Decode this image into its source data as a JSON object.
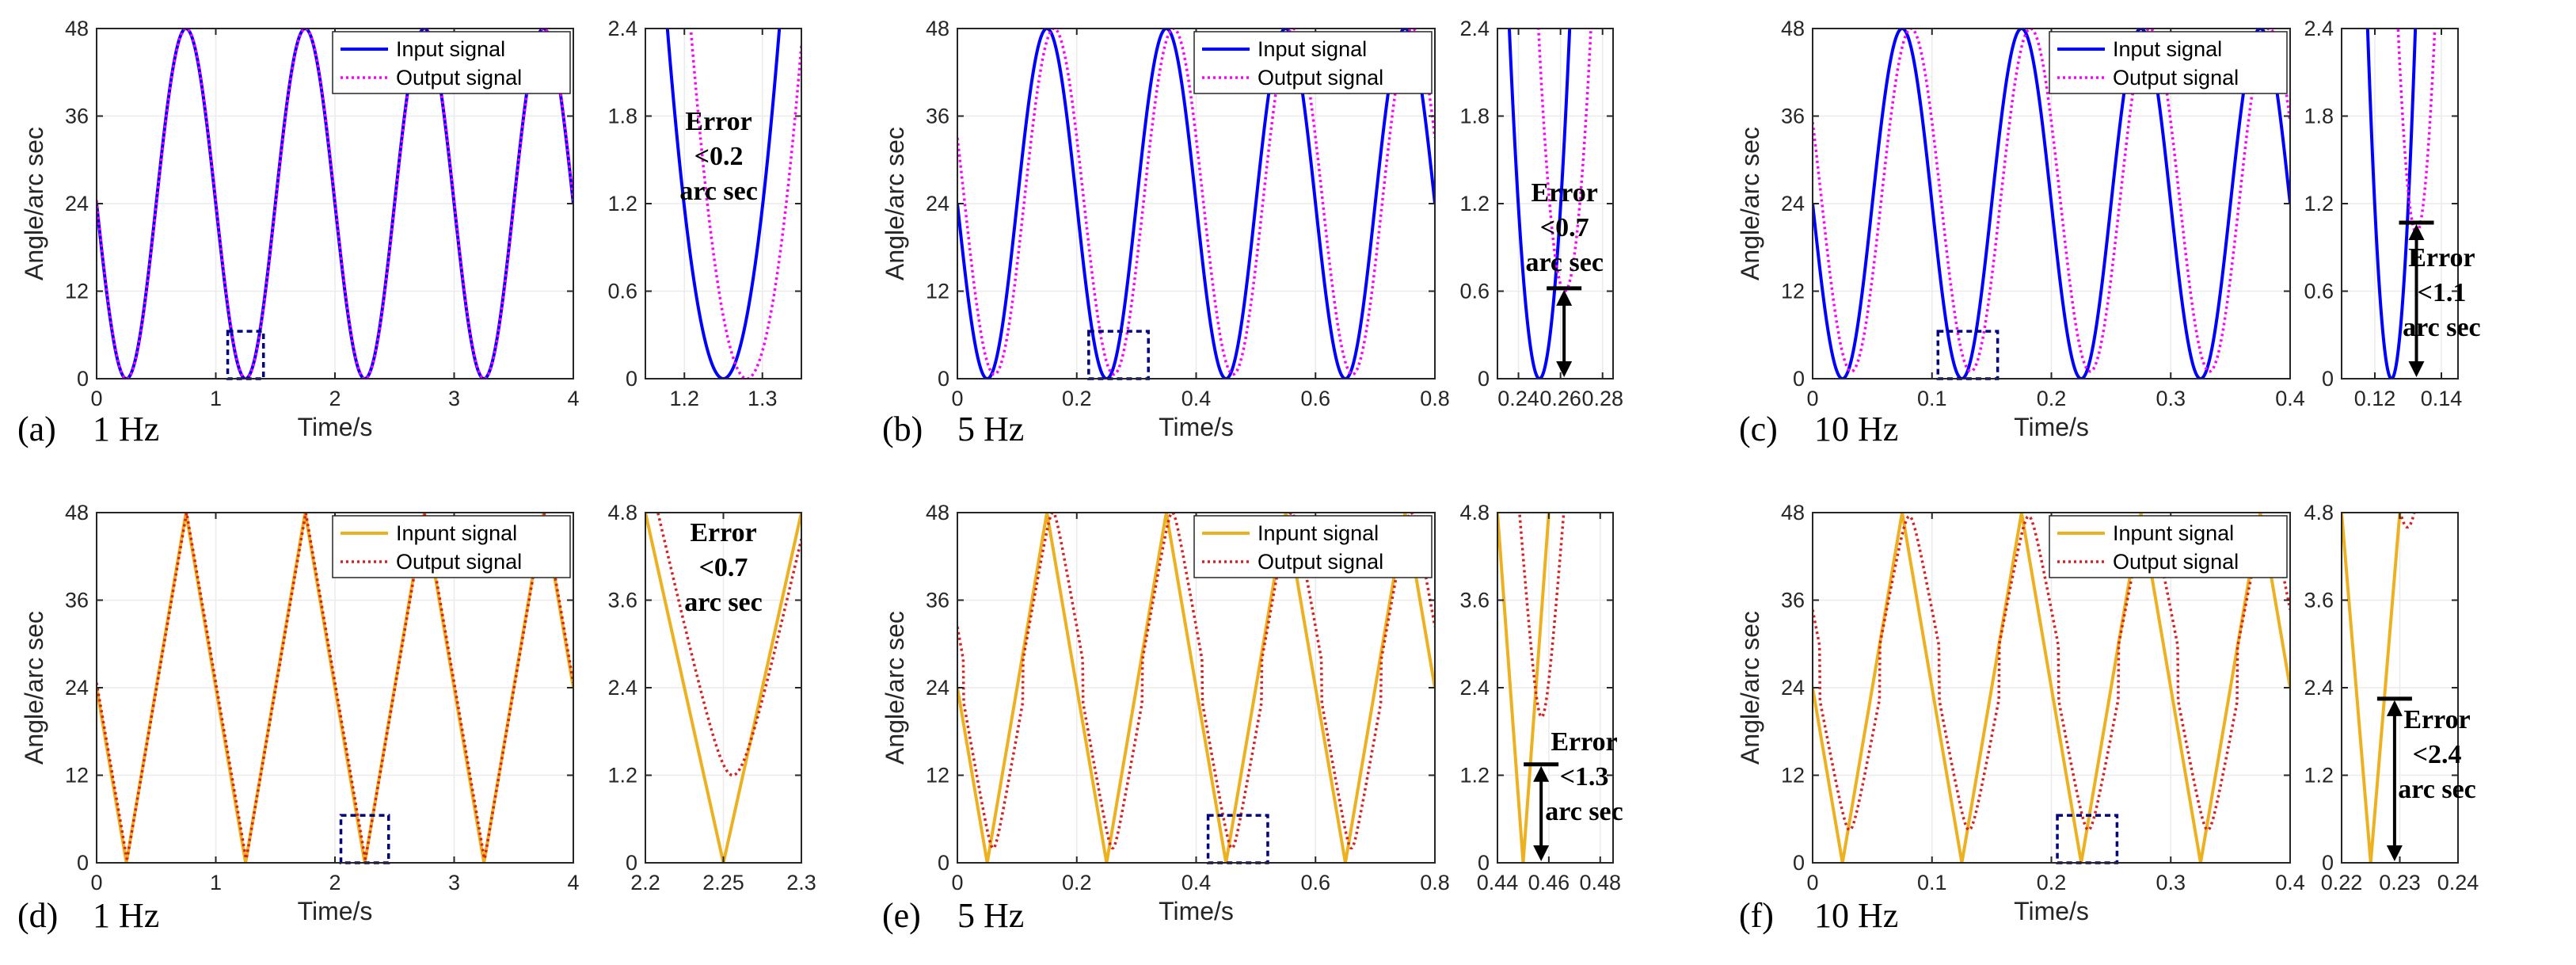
{
  "chart_data": [
    {
      "id": "a-main",
      "type": "line",
      "panel_label": "(a)",
      "freq_label": "1 Hz",
      "xlabel": "Time/s",
      "ylabel": "Angle/arc sec",
      "xlim": [
        0,
        4
      ],
      "ylim": [
        0,
        48
      ],
      "xticks": [
        "0",
        "1",
        "2",
        "3",
        "4"
      ],
      "yticks": [
        "0",
        "12",
        "24",
        "36",
        "48"
      ],
      "legend": {
        "position": "top-right",
        "entries": [
          "Input signal",
          "Output signal"
        ]
      },
      "series": [
        {
          "name": "Input signal",
          "color": "#0000ff",
          "style": "solid",
          "shape": "sine",
          "freq": 1,
          "amp": 24,
          "offset": 24,
          "phase": 0
        },
        {
          "name": "Output signal",
          "color": "#ff00ff",
          "style": "dotted",
          "shape": "sine",
          "freq": 1,
          "amp": 24,
          "offset": 24,
          "phase": 0.003
        }
      ],
      "zoom_box": {
        "x": [
          1.1,
          1.4
        ],
        "y": [
          0,
          6.5
        ]
      }
    },
    {
      "id": "a-zoom",
      "type": "line",
      "xlim": [
        1.15,
        1.35
      ],
      "ylim": [
        0,
        2.4
      ],
      "xticks": [
        "1.2",
        "1.3"
      ],
      "yticks": [
        "0",
        "0.6",
        "1.2",
        "1.8",
        "2.4"
      ],
      "series": [
        {
          "name": "Input signal",
          "color": "#0000ff",
          "style": "solid",
          "shape": "sine",
          "freq": 1,
          "amp": 24,
          "offset": 24,
          "phase": 0
        },
        {
          "name": "Output signal",
          "color": "#ff00ff",
          "style": "dotted",
          "shape": "sine",
          "freq": 1,
          "amp": 24,
          "offset": 24,
          "phase": 0.03
        }
      ],
      "annotation": {
        "lines": [
          "Error",
          "<0.2",
          "arc sec"
        ]
      }
    },
    {
      "id": "b-main",
      "type": "line",
      "panel_label": "(b)",
      "freq_label": "5 Hz",
      "xlabel": "Time/s",
      "ylabel": "Angle/arc sec",
      "xlim": [
        0,
        0.8
      ],
      "ylim": [
        0,
        48
      ],
      "xticks": [
        "0",
        "0.2",
        "0.4",
        "0.6",
        "0.8"
      ],
      "yticks": [
        "0",
        "12",
        "24",
        "36",
        "48"
      ],
      "legend": {
        "position": "top-right",
        "entries": [
          "Input signal",
          "Output signal"
        ]
      },
      "series": [
        {
          "name": "Input signal",
          "color": "#0000ff",
          "style": "solid",
          "shape": "sine",
          "freq": 5,
          "amp": 24,
          "offset": 24,
          "phase": 0
        },
        {
          "name": "Output signal",
          "color": "#ff00ff",
          "style": "dotted",
          "shape": "sine",
          "freq": 5,
          "amp": 23.7,
          "offset": 24.3,
          "phase": 0.012
        }
      ],
      "zoom_box": {
        "x": [
          0.22,
          0.32
        ],
        "y": [
          0,
          6.5
        ]
      }
    },
    {
      "id": "b-zoom",
      "type": "line",
      "xlim": [
        0.23,
        0.285
      ],
      "ylim": [
        0,
        2.4
      ],
      "xticks": [
        "0.24",
        "0.26",
        "0.28"
      ],
      "yticks": [
        "0",
        "0.6",
        "1.2",
        "1.8",
        "2.4"
      ],
      "series": [
        {
          "name": "Input signal",
          "color": "#0000ff",
          "style": "solid",
          "shape": "sine",
          "freq": 5,
          "amp": 24,
          "offset": 24,
          "phase": 0
        },
        {
          "name": "Output signal",
          "color": "#ff00ff",
          "style": "dotted",
          "shape": "sine",
          "freq": 5,
          "amp": 23.7,
          "offset": 24.3,
          "phase": 0.012
        }
      ],
      "error_arrow": {
        "x": 0.2617,
        "y0": 0,
        "y1": 0.62
      },
      "annotation": {
        "lines": [
          "Error",
          "<0.7",
          "arc sec"
        ]
      }
    },
    {
      "id": "c-main",
      "type": "line",
      "panel_label": "(c)",
      "freq_label": "10 Hz",
      "xlabel": "Time/s",
      "ylabel": "Angle/arc sec",
      "xlim": [
        0,
        0.4
      ],
      "ylim": [
        0,
        48
      ],
      "xticks": [
        "0",
        "0.1",
        "0.2",
        "0.3",
        "0.4"
      ],
      "yticks": [
        "0",
        "12",
        "24",
        "36",
        "48"
      ],
      "legend": {
        "position": "top-right",
        "entries": [
          "Input signal",
          "Output signal"
        ]
      },
      "series": [
        {
          "name": "Input signal",
          "color": "#0000ff",
          "style": "solid",
          "shape": "sine",
          "freq": 10,
          "amp": 24,
          "offset": 24,
          "phase": 0
        },
        {
          "name": "Output signal",
          "color": "#ff00ff",
          "style": "dotted",
          "shape": "sine",
          "freq": 10,
          "amp": 23.5,
          "offset": 24.5,
          "phase": 0.0075
        }
      ],
      "zoom_box": {
        "x": [
          0.105,
          0.155
        ],
        "y": [
          0,
          6.5
        ]
      }
    },
    {
      "id": "c-zoom",
      "type": "line",
      "xlim": [
        0.11,
        0.145
      ],
      "ylim": [
        0,
        2.4
      ],
      "xticks": [
        "0.12",
        "0.14"
      ],
      "yticks": [
        "0",
        "0.6",
        "1.2",
        "1.8",
        "2.4"
      ],
      "series": [
        {
          "name": "Input signal",
          "color": "#0000ff",
          "style": "solid",
          "shape": "sine",
          "freq": 10,
          "amp": 24,
          "offset": 24,
          "phase": 0
        },
        {
          "name": "Output signal",
          "color": "#ff00ff",
          "style": "dotted",
          "shape": "sine",
          "freq": 10,
          "amp": 23.5,
          "offset": 24.5,
          "phase": 0.0075
        }
      ],
      "error_arrow": {
        "x": 0.1325,
        "y0": 0,
        "y1": 1.07
      },
      "annotation": {
        "lines": [
          "Error",
          "<1.1",
          "arc sec"
        ]
      }
    },
    {
      "id": "d-main",
      "type": "line",
      "panel_label": "(d)",
      "freq_label": "1 Hz",
      "xlabel": "Time/s",
      "ylabel": "Angle/arc sec",
      "xlim": [
        0,
        4
      ],
      "ylim": [
        0,
        48
      ],
      "xticks": [
        "0",
        "1",
        "2",
        "3",
        "4"
      ],
      "yticks": [
        "0",
        "12",
        "24",
        "36",
        "48"
      ],
      "legend": {
        "position": "top-right",
        "entries": [
          "Inpunt signal",
          "Output signal"
        ]
      },
      "series": [
        {
          "name": "Inpunt signal",
          "color": "#edb120",
          "style": "solid",
          "shape": "triangle",
          "freq": 1,
          "amp": 24,
          "offset": 24,
          "phase": 0
        },
        {
          "name": "Output signal",
          "color": "#d92020",
          "style": "dotted",
          "shape": "triangle",
          "freq": 1,
          "amp": 23.8,
          "offset": 24.2,
          "phase": 0.005
        }
      ],
      "zoom_box": {
        "x": [
          2.05,
          2.45
        ],
        "y": [
          0,
          6.5
        ]
      }
    },
    {
      "id": "d-zoom",
      "type": "line",
      "xlim": [
        2.2,
        2.3
      ],
      "ylim": [
        0,
        4.8
      ],
      "xticks": [
        "2.2",
        "2.25",
        "2.3"
      ],
      "yticks": [
        "0",
        "1.2",
        "2.4",
        "3.6",
        "4.8"
      ],
      "series": [
        {
          "name": "Inpunt signal",
          "color": "#edb120",
          "style": "solid",
          "shape": "triangle",
          "freq": 1,
          "amp": 24,
          "offset": 24,
          "phase": 0
        },
        {
          "name": "Output signal",
          "color": "#d92020",
          "style": "dotted",
          "shape": "roundtri",
          "freq": 1,
          "amp": 23.4,
          "offset": 24.6,
          "phase": 0.006,
          "round": 1.0
        }
      ],
      "annotation": {
        "lines": [
          "Error",
          "<0.7",
          "arc sec"
        ]
      }
    },
    {
      "id": "e-main",
      "type": "line",
      "panel_label": "(e)",
      "freq_label": "5 Hz",
      "xlabel": "Time/s",
      "ylabel": "Angle/arc sec",
      "xlim": [
        0,
        0.8
      ],
      "ylim": [
        0,
        48
      ],
      "xticks": [
        "0",
        "0.2",
        "0.4",
        "0.6",
        "0.8"
      ],
      "yticks": [
        "0",
        "12",
        "24",
        "36",
        "48"
      ],
      "legend": {
        "position": "top-right",
        "entries": [
          "Inpunt signal",
          "Output signal"
        ]
      },
      "series": [
        {
          "name": "Inpunt signal",
          "color": "#edb120",
          "style": "solid",
          "shape": "triangle",
          "freq": 5,
          "amp": 24,
          "offset": 24,
          "phase": 0
        },
        {
          "name": "Output signal",
          "color": "#d92020",
          "style": "dotted",
          "shape": "roundtri",
          "freq": 5,
          "amp": 23,
          "offset": 25,
          "phase": 0.01,
          "round": 3
        }
      ],
      "zoom_box": {
        "x": [
          0.42,
          0.52
        ],
        "y": [
          0,
          6.5
        ]
      }
    },
    {
      "id": "e-zoom",
      "type": "line",
      "xlim": [
        0.44,
        0.485
      ],
      "ylim": [
        0,
        4.8
      ],
      "xticks": [
        "0.44",
        "0.46",
        "0.48"
      ],
      "yticks": [
        "0",
        "1.2",
        "2.4",
        "3.6",
        "4.8"
      ],
      "series": [
        {
          "name": "Inpunt signal",
          "color": "#edb120",
          "style": "solid",
          "shape": "triangle",
          "freq": 5,
          "amp": 24,
          "offset": 24,
          "phase": 0
        },
        {
          "name": "Output signal",
          "color": "#d92020",
          "style": "dotted",
          "shape": "roundtri",
          "freq": 5,
          "amp": 23,
          "offset": 25,
          "phase": 0.0072,
          "round": 1.4
        }
      ],
      "error_arrow": {
        "x": 0.457,
        "y0": 0,
        "y1": 1.35
      },
      "annotation": {
        "lines": [
          "Error",
          "<1.3",
          "arc sec"
        ]
      }
    },
    {
      "id": "f-main",
      "type": "line",
      "panel_label": "(f)",
      "freq_label": "10 Hz",
      "xlabel": "Time/s",
      "ylabel": "Angle/arc sec",
      "xlim": [
        0,
        0.4
      ],
      "ylim": [
        0,
        48
      ],
      "xticks": [
        "0",
        "0.1",
        "0.2",
        "0.3",
        "0.4"
      ],
      "yticks": [
        "0",
        "12",
        "24",
        "36",
        "48"
      ],
      "legend": {
        "position": "top-right",
        "entries": [
          "Inpunt signal",
          "Output signal"
        ]
      },
      "series": [
        {
          "name": "Inpunt signal",
          "color": "#edb120",
          "style": "solid",
          "shape": "triangle",
          "freq": 10,
          "amp": 24,
          "offset": 24,
          "phase": 0
        },
        {
          "name": "Output signal",
          "color": "#d92020",
          "style": "dotted",
          "shape": "roundtri",
          "freq": 10,
          "amp": 21.5,
          "offset": 26,
          "phase": 0.006,
          "round": 4
        }
      ],
      "zoom_box": {
        "x": [
          0.205,
          0.255
        ],
        "y": [
          0,
          6.5
        ]
      }
    },
    {
      "id": "f-zoom",
      "type": "line",
      "xlim": [
        0.22,
        0.24
      ],
      "ylim": [
        0,
        4.8
      ],
      "xticks": [
        "0.22",
        "0.23",
        "0.24"
      ],
      "yticks": [
        "0",
        "1.2",
        "2.4",
        "3.6",
        "4.8"
      ],
      "series": [
        {
          "name": "Inpunt signal",
          "color": "#edb120",
          "style": "solid",
          "shape": "triangle",
          "freq": 10,
          "amp": 24,
          "offset": 24,
          "phase": 0
        },
        {
          "name": "Output signal",
          "color": "#d92020",
          "style": "dotted",
          "shape": "roundtri",
          "freq": 10,
          "amp": 21.7,
          "offset": 26.3,
          "phase": 0.0063,
          "round": 2.5
        }
      ],
      "error_arrow": {
        "x": 0.2291,
        "y0": 0,
        "y1": 2.25
      },
      "annotation": {
        "lines": [
          "Error",
          "<2.4",
          "arc sec"
        ]
      }
    }
  ]
}
